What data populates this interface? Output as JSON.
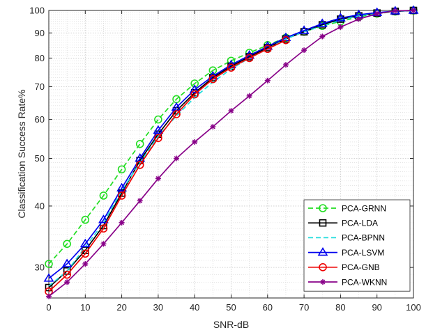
{
  "chart_data": {
    "type": "line",
    "title": "",
    "xlabel": "SNR-dB",
    "ylabel": "Classification Success Rate%",
    "xlim": [
      0,
      100
    ],
    "ylim": [
      26,
      100
    ],
    "yscale": "log",
    "grid": true,
    "minor_grid": true,
    "legend_position": "bottom-right",
    "x_ticks": [
      0,
      10,
      20,
      30,
      40,
      50,
      60,
      70,
      80,
      90,
      100
    ],
    "y_ticks": [
      30,
      40,
      50,
      60,
      70,
      80,
      90,
      100
    ],
    "x": [
      0,
      5,
      10,
      15,
      20,
      25,
      30,
      35,
      40,
      45,
      50,
      55,
      60,
      65,
      70,
      75,
      80,
      85,
      90,
      95,
      100
    ],
    "series": [
      {
        "name": "PCA-GRNN",
        "color": "#22dd22",
        "dash": "dashed",
        "marker": "circle",
        "values": [
          30.5,
          33.5,
          37.5,
          42,
          47.5,
          53.5,
          60,
          66,
          71,
          75.5,
          79,
          82,
          85,
          88,
          90.5,
          93,
          95,
          97,
          98.5,
          99.5,
          100
        ]
      },
      {
        "name": "PCA-LDA",
        "color": "#000000",
        "dash": "solid",
        "marker": "square",
        "values": [
          27.3,
          29.5,
          32.5,
          36.5,
          42.5,
          49.5,
          56,
          62.5,
          68,
          73,
          77,
          80.5,
          84,
          87.5,
          90.5,
          93.5,
          96,
          97.5,
          98.8,
          99.6,
          100
        ]
      },
      {
        "name": "PCA-BPNN",
        "color": "#22dddd",
        "dash": "dashed",
        "marker": "none",
        "values": [
          27.5,
          29.5,
          33,
          37,
          43,
          49,
          55.5,
          61,
          66.5,
          71.5,
          76,
          80,
          83.5,
          87.5,
          90.5,
          93,
          95.5,
          97.5,
          98.8,
          99.6,
          100
        ]
      },
      {
        "name": "PCA-LSVM",
        "color": "#0000ee",
        "dash": "solid",
        "marker": "triangle",
        "values": [
          28.5,
          30.5,
          33.5,
          37.5,
          43.5,
          50,
          57,
          63.5,
          69,
          73.5,
          77.5,
          81,
          84.5,
          88,
          91,
          94,
          96.5,
          98,
          99,
          99.7,
          100
        ]
      },
      {
        "name": "PCA-GNB",
        "color": "#ee0000",
        "dash": "solid",
        "marker": "circle",
        "values": [
          26.8,
          29,
          32,
          36,
          42,
          48.5,
          55,
          61.5,
          67.5,
          72.5,
          76.5,
          80,
          83.5,
          87,
          null,
          null,
          null,
          null,
          null,
          null,
          null
        ]
      },
      {
        "name": "PCA-WKNN",
        "color": "#880088",
        "dash": "solid",
        "marker": "asterisk",
        "values": [
          26.2,
          28,
          30.5,
          33.5,
          37,
          41,
          45.5,
          50,
          54,
          58,
          62.5,
          67,
          72,
          77.5,
          83,
          88.5,
          92.5,
          96,
          98.5,
          99.8,
          100
        ]
      }
    ]
  }
}
